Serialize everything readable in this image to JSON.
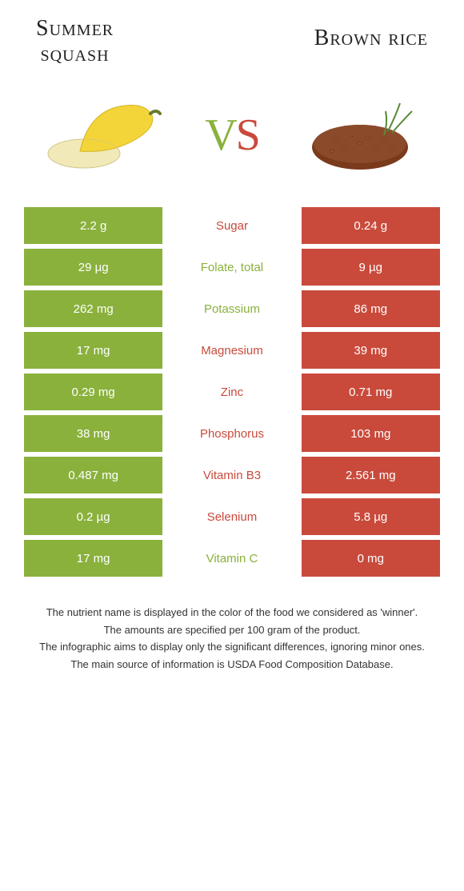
{
  "header": {
    "left_title_line1": "Summer",
    "left_title_line2": "squash",
    "right_title": "Brown rice"
  },
  "vs": {
    "v": "V",
    "s": "S"
  },
  "colors": {
    "left_bg": "#8ab13c",
    "right_bg": "#c94a3b",
    "row_gap": "#ffffff"
  },
  "rows": [
    {
      "label": "Sugar",
      "left": "2.2 g",
      "right": "0.24 g",
      "winner": "right"
    },
    {
      "label": "Folate, total",
      "left": "29 µg",
      "right": "9 µg",
      "winner": "left"
    },
    {
      "label": "Potassium",
      "left": "262 mg",
      "right": "86 mg",
      "winner": "left"
    },
    {
      "label": "Magnesium",
      "left": "17 mg",
      "right": "39 mg",
      "winner": "right"
    },
    {
      "label": "Zinc",
      "left": "0.29 mg",
      "right": "0.71 mg",
      "winner": "right"
    },
    {
      "label": "Phosphorus",
      "left": "38 mg",
      "right": "103 mg",
      "winner": "right"
    },
    {
      "label": "Vitamin B3",
      "left": "0.487 mg",
      "right": "2.561 mg",
      "winner": "right"
    },
    {
      "label": "Selenium",
      "left": "0.2 µg",
      "right": "5.8 µg",
      "winner": "right"
    },
    {
      "label": "Vitamin C",
      "left": "17 mg",
      "right": "0 mg",
      "winner": "left"
    }
  ],
  "notes": [
    "The nutrient name is displayed in the color of the food we considered as 'winner'.",
    "The amounts are specified per 100 gram of the product.",
    "The infographic aims to display only the significant differences, ignoring minor ones.",
    "The main source of information is USDA Food Composition Database."
  ]
}
